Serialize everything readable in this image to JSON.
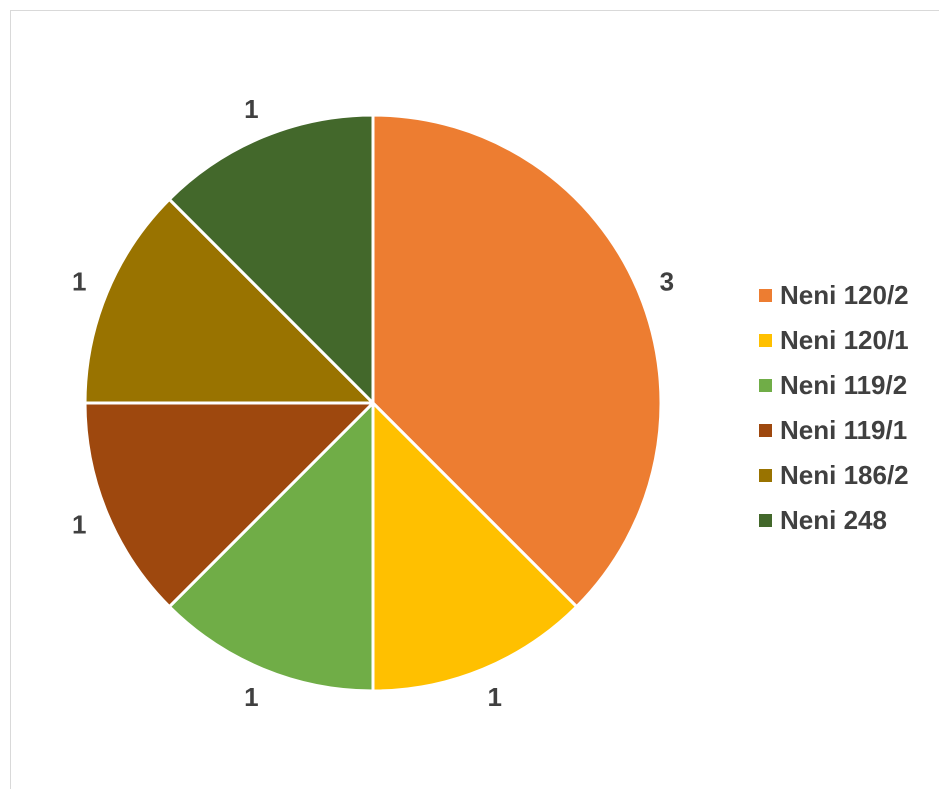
{
  "chart_data": {
    "type": "pie",
    "title": "",
    "categories": [
      "Neni 120/2",
      "Neni 120/1",
      "Neni 119/2",
      "Neni 119/1",
      "Neni 186/2",
      "Neni 248"
    ],
    "values": [
      3,
      1,
      1,
      1,
      1,
      1
    ],
    "data_labels": [
      "3",
      "1",
      "1",
      "1",
      "1",
      "1"
    ],
    "colors": [
      "#ED7D31",
      "#FFC000",
      "#70AD47",
      "#9E480E",
      "#997300",
      "#43682B"
    ],
    "start_angle_deg": 0,
    "direction": "clockwise",
    "legend_position": "right"
  }
}
